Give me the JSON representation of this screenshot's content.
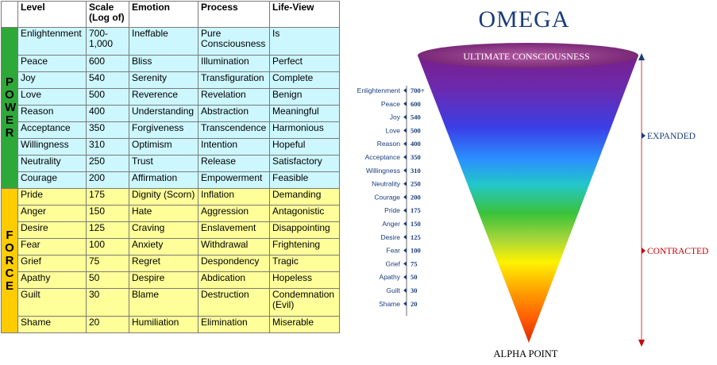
{
  "table": {
    "headers": [
      "Level",
      "Scale (Log of)",
      "Emotion",
      "Process",
      "Life-View"
    ],
    "sidebar": {
      "power": "POWER",
      "force": "FORCE"
    },
    "colors": {
      "power_row": "#ccf7ff",
      "force_row": "#ffff99",
      "power_bar": "#2fa83a",
      "force_bar": "#ffcc00"
    },
    "rows": [
      {
        "level": "Enlightenment",
        "scale": "700-1,000",
        "emotion": "Ineffable",
        "process": "Pure Consciousness",
        "view": "Is",
        "group": "power"
      },
      {
        "level": "Peace",
        "scale": "600",
        "emotion": "Bliss",
        "process": "Illumination",
        "view": "Perfect",
        "group": "power"
      },
      {
        "level": "Joy",
        "scale": "540",
        "emotion": "Serenity",
        "process": "Transfiguration",
        "view": "Complete",
        "group": "power"
      },
      {
        "level": "Love",
        "scale": "500",
        "emotion": "Reverence",
        "process": "Revelation",
        "view": "Benign",
        "group": "power"
      },
      {
        "level": "Reason",
        "scale": "400",
        "emotion": "Understanding",
        "process": "Abstraction",
        "view": "Meaningful",
        "group": "power"
      },
      {
        "level": "Acceptance",
        "scale": "350",
        "emotion": "Forgiveness",
        "process": "Transcendence",
        "view": "Harmonious",
        "group": "power"
      },
      {
        "level": "Willingness",
        "scale": "310",
        "emotion": "Optimism",
        "process": "Intention",
        "view": "Hopeful",
        "group": "power"
      },
      {
        "level": "Neutrality",
        "scale": "250",
        "emotion": "Trust",
        "process": "Release",
        "view": "Satisfactory",
        "group": "power"
      },
      {
        "level": "Courage",
        "scale": "200",
        "emotion": "Affirmation",
        "process": "Empowerment",
        "view": "Feasible",
        "group": "power"
      },
      {
        "level": "Pride",
        "scale": "175",
        "emotion": "Dignity (Scorn)",
        "process": "Inflation",
        "view": "Demanding",
        "group": "force"
      },
      {
        "level": "Anger",
        "scale": "150",
        "emotion": "Hate",
        "process": "Aggression",
        "view": "Antagonistic",
        "group": "force"
      },
      {
        "level": "Desire",
        "scale": "125",
        "emotion": "Craving",
        "process": "Enslavement",
        "view": "Disappointing",
        "group": "force"
      },
      {
        "level": "Fear",
        "scale": "100",
        "emotion": "Anxiety",
        "process": "Withdrawal",
        "view": "Frightening",
        "group": "force"
      },
      {
        "level": "Grief",
        "scale": "75",
        "emotion": "Regret",
        "process": "Despondency",
        "view": "Tragic",
        "group": "force"
      },
      {
        "level": "Apathy",
        "scale": "50",
        "emotion": "Despire",
        "process": "Abdication",
        "view": "Hopeless",
        "group": "force"
      },
      {
        "level": "Guilt",
        "scale": "30",
        "emotion": "Blame",
        "process": "Destruction",
        "view": "Condemnation (Evil)",
        "group": "force"
      },
      {
        "level": "Shame",
        "scale": "20",
        "emotion": "Humiliation",
        "process": "Elimination",
        "view": "Miserable",
        "group": "force"
      }
    ]
  },
  "diagram": {
    "title": "OMEGA",
    "top_label": "ULTIMATE CONSCIOUSNESS",
    "bottom_label": "ALPHA POINT",
    "expanded_label": "EXPANDED",
    "contracted_label": "CONTRACTED",
    "colors": {
      "title": "#1a3d7a",
      "expanded": "#1a3d7a",
      "contracted": "#cc0000"
    },
    "scale": [
      {
        "name": "Enlightenment",
        "value": "700+"
      },
      {
        "name": "Peace",
        "value": "600"
      },
      {
        "name": "Joy",
        "value": "540"
      },
      {
        "name": "Love",
        "value": "500"
      },
      {
        "name": "Reason",
        "value": "400"
      },
      {
        "name": "Acceptance",
        "value": "350"
      },
      {
        "name": "Willingness",
        "value": "310"
      },
      {
        "name": "Neutrality",
        "value": "250"
      },
      {
        "name": "Courage",
        "value": "200"
      },
      {
        "name": "Pride",
        "value": "175"
      },
      {
        "name": "Anger",
        "value": "150"
      },
      {
        "name": "Desire",
        "value": "125"
      },
      {
        "name": "Fear",
        "value": "100"
      },
      {
        "name": "Grief",
        "value": "75"
      },
      {
        "name": "Apathy",
        "value": "50"
      },
      {
        "name": "Guilt",
        "value": "30"
      },
      {
        "name": "Shame",
        "value": "20"
      }
    ]
  }
}
